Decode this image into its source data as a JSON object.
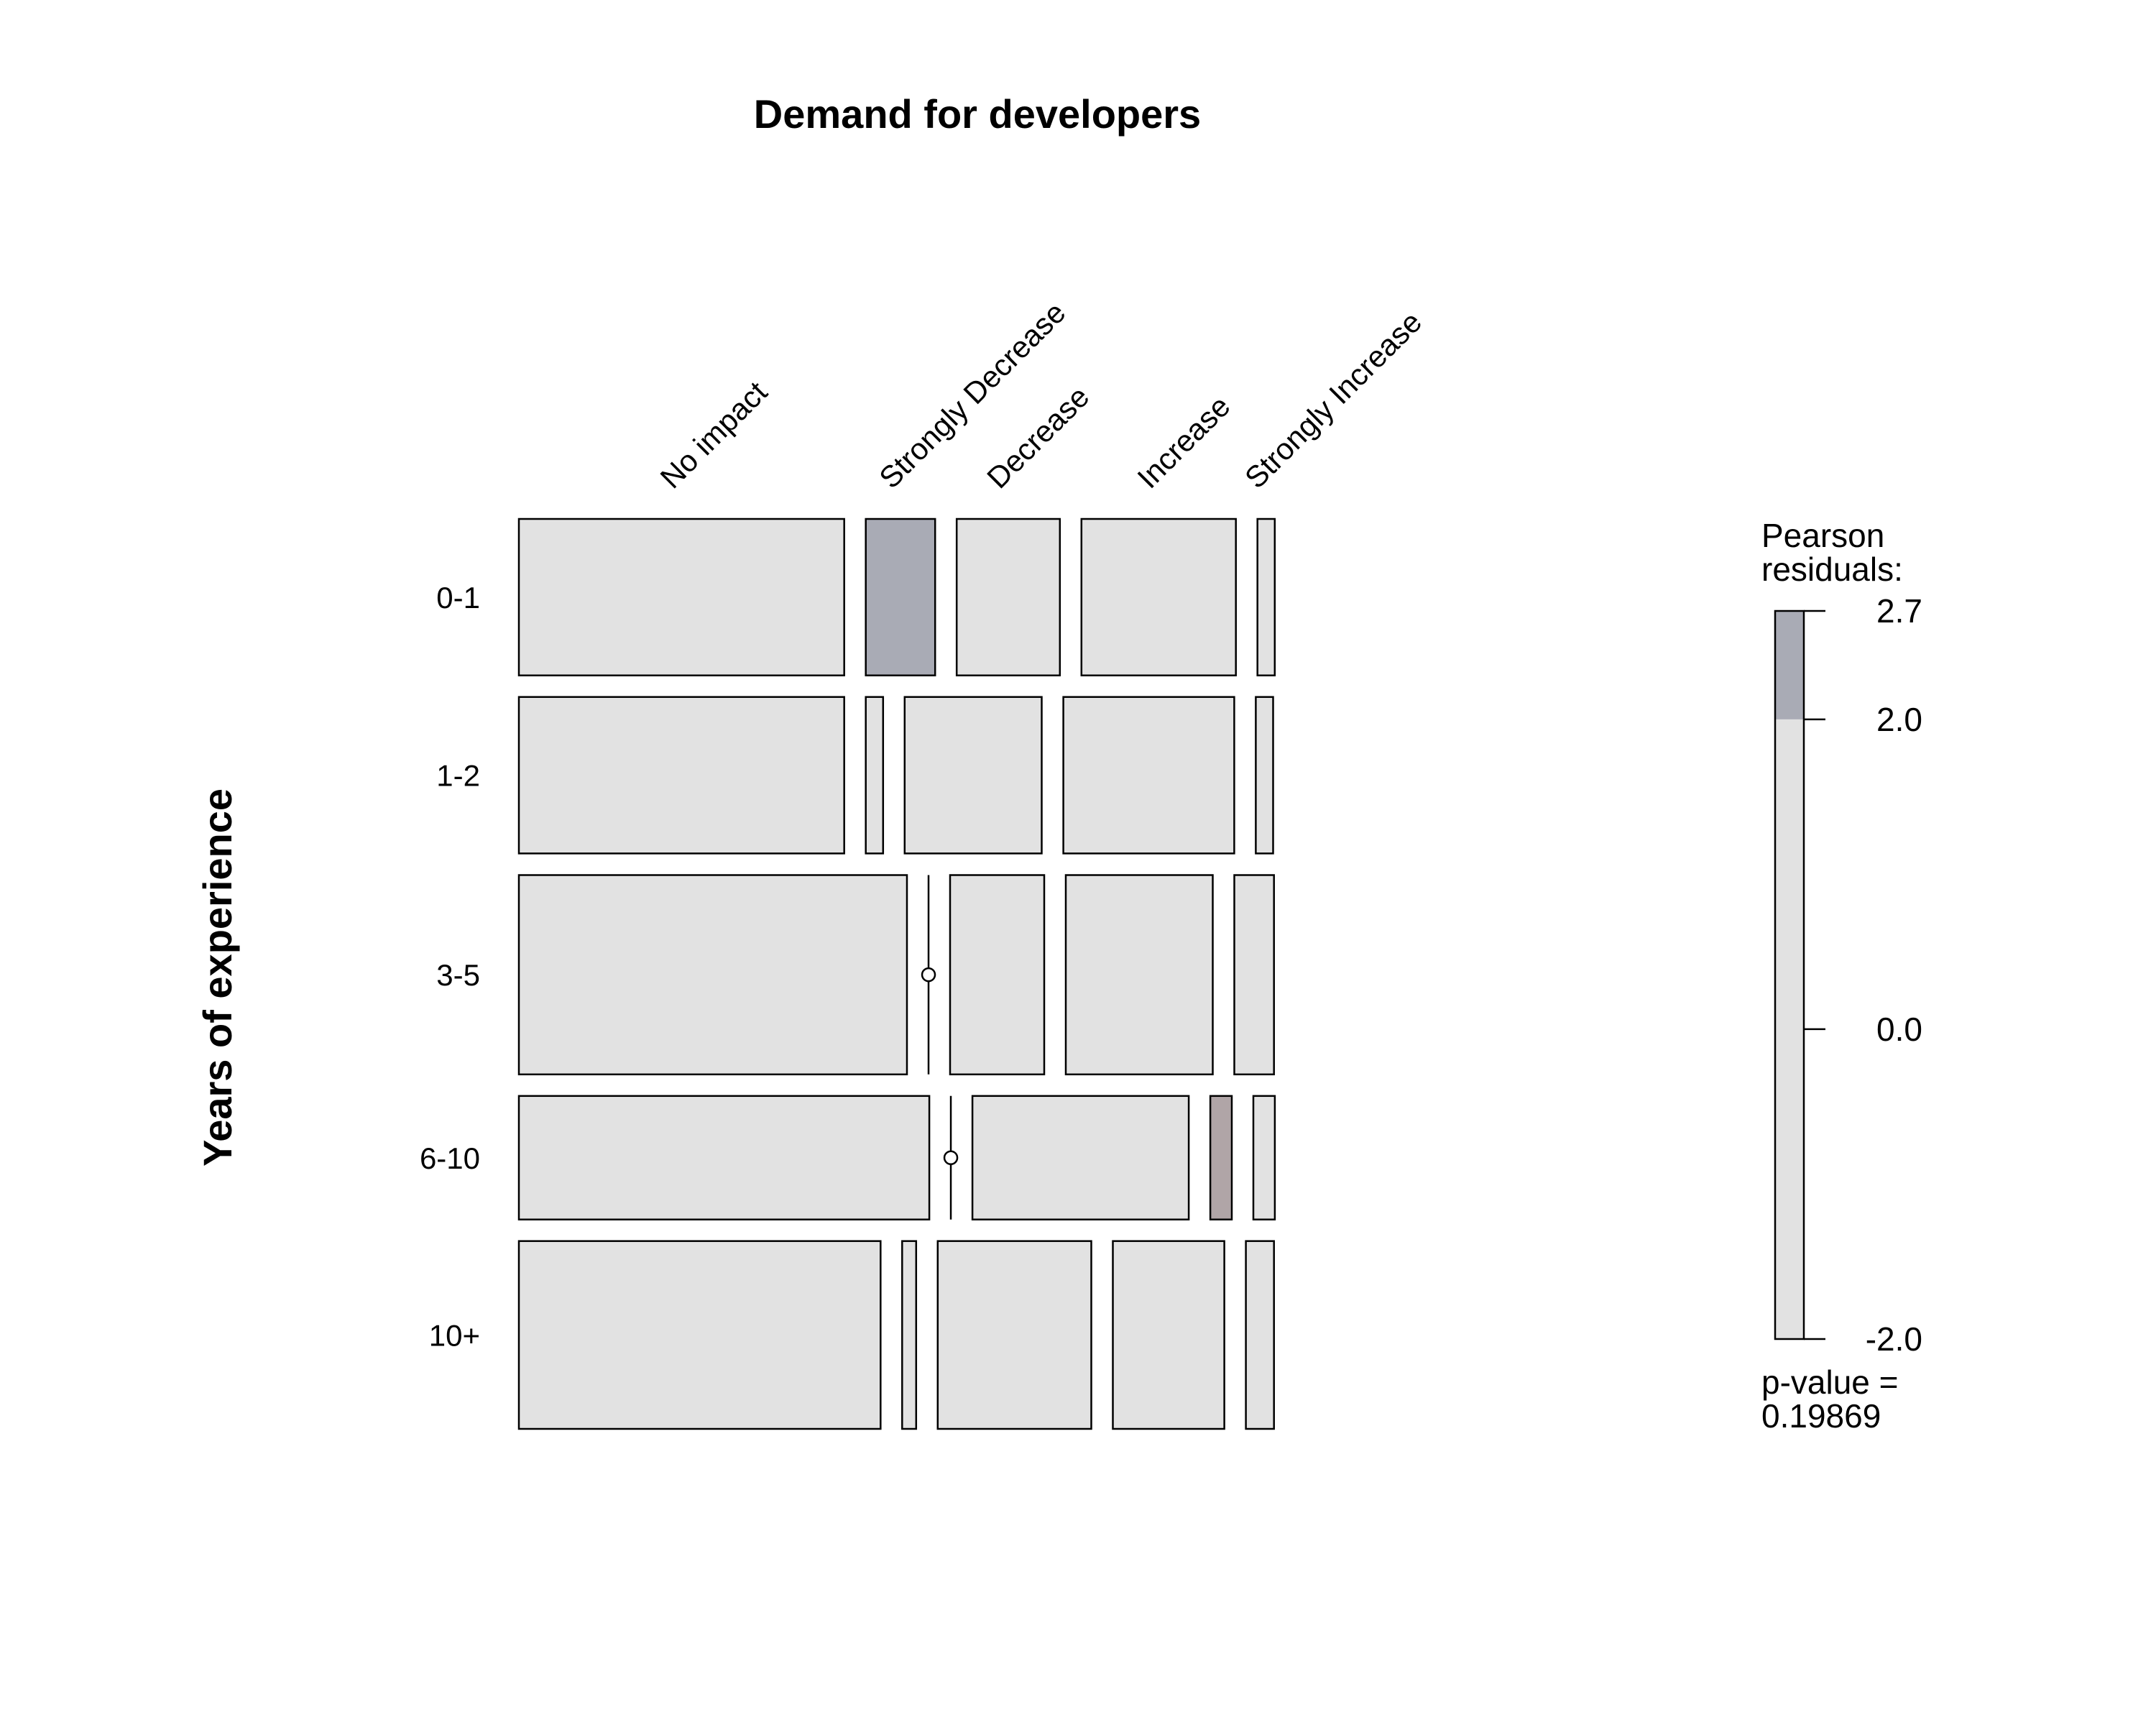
{
  "chart_data": {
    "type": "mosaic",
    "title": "Demand for developers",
    "xlabel": "",
    "ylabel": "Years of experience",
    "columns": [
      "No impact",
      "Strongly Decrease",
      "Decrease",
      "Increase",
      "Strongly Increase"
    ],
    "rows": [
      "0-1",
      "1-2",
      "3-5",
      "6-10",
      "10+"
    ],
    "row_proportions": [
      0.19,
      0.19,
      0.242,
      0.15,
      0.228
    ],
    "cell_proportions": [
      [
        0.394,
        0.084,
        0.125,
        0.187,
        0.021
      ],
      [
        0.394,
        0.021,
        0.166,
        0.207,
        0.021
      ],
      [
        0.47,
        0.0,
        0.114,
        0.178,
        0.048
      ],
      [
        0.497,
        0.0,
        0.262,
        0.026,
        0.026
      ],
      [
        0.438,
        0.017,
        0.186,
        0.135,
        0.034
      ]
    ],
    "residual_sign": [
      [
        "neutral",
        "positive",
        "neutral",
        "neutral",
        "neutral"
      ],
      [
        "neutral",
        "neutral",
        "neutral",
        "neutral",
        "neutral"
      ],
      [
        "neutral",
        "neutral",
        "neutral",
        "neutral",
        "neutral"
      ],
      [
        "neutral",
        "neutral",
        "neutral",
        "negative",
        "neutral"
      ],
      [
        "neutral",
        "neutral",
        "neutral",
        "neutral",
        "neutral"
      ]
    ],
    "legend": {
      "title_line1": "Pearson",
      "title_line2": "residuals:",
      "min": -2.0,
      "max": 2.7,
      "ticks": [
        "2.7",
        "2.0",
        "0.0",
        "-2.0"
      ],
      "tick_values": [
        2.7,
        2.0,
        0.0,
        -2.0
      ],
      "shade_threshold": 2.0,
      "pvalue_line1": "p-value =",
      "pvalue_line2": "0.19869"
    },
    "colors": {
      "neutral": "#e2e2e2",
      "positive": "#a9abb5",
      "negative": "#b0a5a7",
      "border": "#000000"
    }
  }
}
